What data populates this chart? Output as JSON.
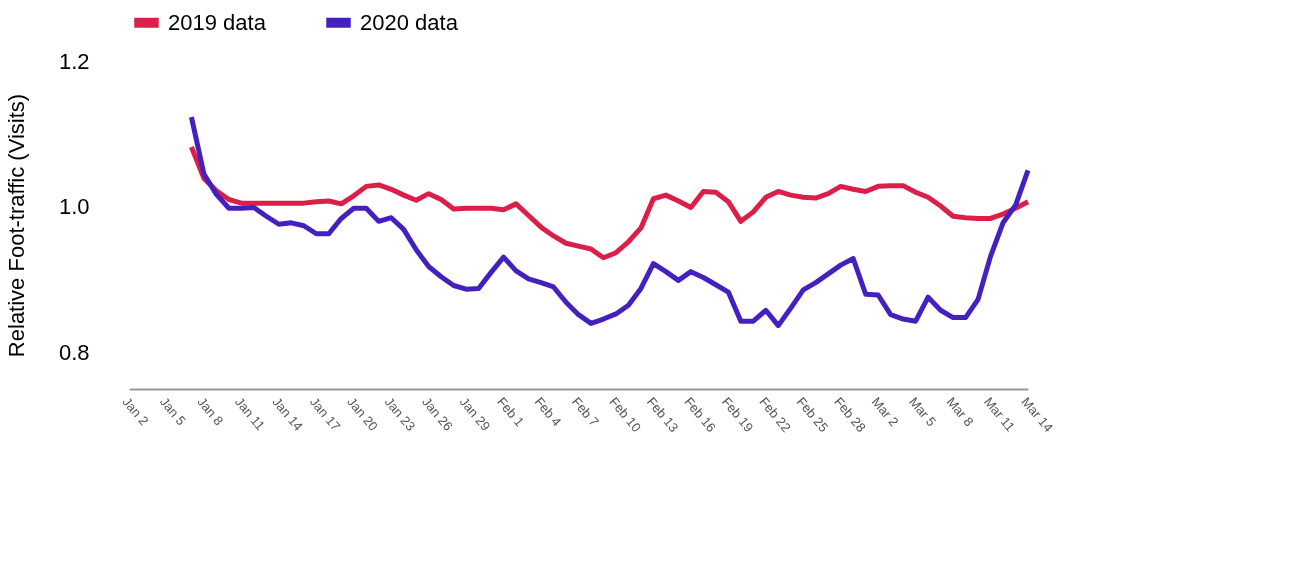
{
  "chart_data": {
    "type": "line",
    "ylabel": "Relative Foot-traffic (Visits)",
    "x": [
      "2020-01-07",
      "2020-01-08",
      "2020-01-09",
      "2020-01-10",
      "2020-01-11",
      "2020-01-12",
      "2020-01-13",
      "2020-01-14",
      "2020-01-15",
      "2020-01-16",
      "2020-01-17",
      "2020-01-18",
      "2020-01-19",
      "2020-01-20",
      "2020-01-21",
      "2020-01-22",
      "2020-01-23",
      "2020-01-24",
      "2020-01-25",
      "2020-01-26",
      "2020-01-27",
      "2020-01-28",
      "2020-01-29",
      "2020-01-30",
      "2020-01-31",
      "2020-02-01",
      "2020-02-02",
      "2020-02-03",
      "2020-02-04",
      "2020-02-05",
      "2020-02-06",
      "2020-02-07",
      "2020-02-08",
      "2020-02-09",
      "2020-02-10",
      "2020-02-11",
      "2020-02-12",
      "2020-02-13",
      "2020-02-14",
      "2020-02-15",
      "2020-02-16",
      "2020-02-17",
      "2020-02-18",
      "2020-02-19",
      "2020-02-20",
      "2020-02-21",
      "2020-02-22",
      "2020-02-23",
      "2020-02-24",
      "2020-02-25",
      "2020-02-26",
      "2020-02-27",
      "2020-02-28",
      "2020-02-29",
      "2020-03-01",
      "2020-03-02",
      "2020-03-03",
      "2020-03-04",
      "2020-03-05",
      "2020-03-06",
      "2020-03-07",
      "2020-03-08",
      "2020-03-09",
      "2020-03-10",
      "2020-03-11",
      "2020-03-12",
      "2020-03-13",
      "2020-03-14"
    ],
    "series": [
      {
        "name": "2019 data",
        "color": "#dc1f48",
        "values": [
          1.082,
          1.039,
          1.022,
          1.01,
          1.005,
          1.005,
          1.005,
          1.005,
          1.005,
          1.005,
          1.007,
          1.008,
          1.004,
          1.015,
          1.028,
          1.03,
          1.024,
          1.016,
          1.009,
          1.018,
          1.01,
          0.997,
          0.998,
          0.998,
          0.998,
          0.996,
          1.004,
          0.988,
          0.972,
          0.96,
          0.95,
          0.946,
          0.942,
          0.93,
          0.937,
          0.952,
          0.971,
          1.011,
          1.016,
          1.008,
          0.999,
          1.021,
          1.02,
          1.007,
          0.98,
          0.993,
          1.013,
          1.021,
          1.016,
          1.013,
          1.012,
          1.018,
          1.028,
          1.024,
          1.021,
          1.028,
          1.029,
          1.029,
          1.02,
          1.013,
          1.001,
          0.987,
          0.985,
          0.984,
          0.984,
          0.99,
          0.998,
          1.007
        ]
      },
      {
        "name": "2020 data",
        "color": "#4520c0",
        "values": [
          1.123,
          1.045,
          1.017,
          0.998,
          0.998,
          0.999,
          0.987,
          0.976,
          0.978,
          0.974,
          0.963,
          0.963,
          0.984,
          0.998,
          0.998,
          0.98,
          0.985,
          0.969,
          0.941,
          0.918,
          0.904,
          0.892,
          0.887,
          0.888,
          0.91,
          0.931,
          0.912,
          0.901,
          0.896,
          0.89,
          0.869,
          0.852,
          0.84,
          0.846,
          0.853,
          0.865,
          0.888,
          0.922,
          0.911,
          0.899,
          0.911,
          0.903,
          0.893,
          0.883,
          0.843,
          0.843,
          0.858,
          0.837,
          0.861,
          0.886,
          0.896,
          0.908,
          0.92,
          0.929,
          0.88,
          0.879,
          0.852,
          0.846,
          0.843,
          0.876,
          0.858,
          0.848,
          0.848,
          0.873,
          0.932,
          0.978,
          1.002,
          1.05
        ]
      }
    ],
    "xlim": [
      "2020-01-02",
      "2020-03-14"
    ],
    "xticks": [
      {
        "value": "2020-01-02",
        "label": "Jan 2"
      },
      {
        "value": "2020-01-05",
        "label": "Jan 5"
      },
      {
        "value": "2020-01-08",
        "label": "Jan 8"
      },
      {
        "value": "2020-01-11",
        "label": "Jan 11"
      },
      {
        "value": "2020-01-14",
        "label": "Jan 14"
      },
      {
        "value": "2020-01-17",
        "label": "Jan 17"
      },
      {
        "value": "2020-01-20",
        "label": "Jan 20"
      },
      {
        "value": "2020-01-23",
        "label": "Jan 23"
      },
      {
        "value": "2020-01-26",
        "label": "Jan 26"
      },
      {
        "value": "2020-01-29",
        "label": "Jan 29"
      },
      {
        "value": "2020-02-01",
        "label": "Feb 1"
      },
      {
        "value": "2020-02-04",
        "label": "Feb 4"
      },
      {
        "value": "2020-02-07",
        "label": "Feb 7"
      },
      {
        "value": "2020-02-10",
        "label": "Feb 10"
      },
      {
        "value": "2020-02-13",
        "label": "Feb 13"
      },
      {
        "value": "2020-02-16",
        "label": "Feb 16"
      },
      {
        "value": "2020-02-19",
        "label": "Feb 19"
      },
      {
        "value": "2020-02-22",
        "label": "Feb 22"
      },
      {
        "value": "2020-02-25",
        "label": "Feb 25"
      },
      {
        "value": "2020-02-28",
        "label": "Feb 28"
      },
      {
        "value": "2020-03-02",
        "label": "Mar 2"
      },
      {
        "value": "2020-03-05",
        "label": "Mar 5"
      },
      {
        "value": "2020-03-08",
        "label": "Mar 8"
      },
      {
        "value": "2020-03-11",
        "label": "Mar 11"
      },
      {
        "value": "2020-03-14",
        "label": "Mar 14"
      }
    ],
    "ylim": [
      0.75,
      1.2
    ],
    "yticks": [
      0.8,
      {
        "value": 1.0,
        "label": "1.0"
      },
      1.2
    ],
    "grid": false,
    "legend": "top",
    "marker": "none",
    "line_style": "solid"
  }
}
